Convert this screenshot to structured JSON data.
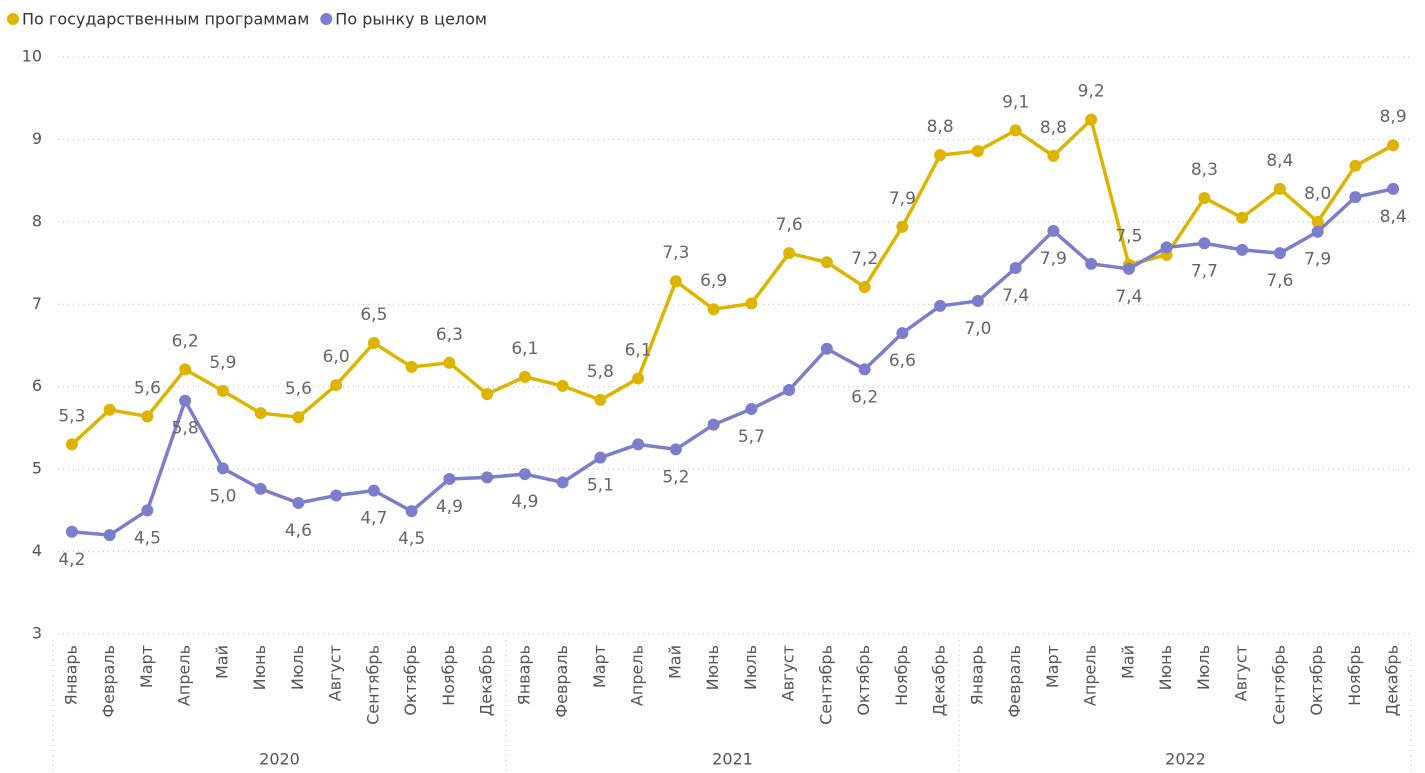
{
  "chart_data": {
    "type": "line",
    "groups": [
      {
        "label": "2020",
        "categories": [
          "Январь",
          "Февраль",
          "Март",
          "Апрель",
          "Май",
          "Июнь",
          "Июль",
          "Август",
          "Сентябрь",
          "Октябрь",
          "Ноябрь",
          "Декабрь"
        ]
      },
      {
        "label": "2021",
        "categories": [
          "Январь",
          "Февраль",
          "Март",
          "Апрель",
          "Май",
          "Июнь",
          "Июль",
          "Август",
          "Сентябрь",
          "Октябрь",
          "Ноябрь",
          "Декабрь"
        ]
      },
      {
        "label": "2022",
        "categories": [
          "Январь",
          "Февраль",
          "Март",
          "Апрель",
          "Май",
          "Июнь",
          "Июль",
          "Август",
          "Сентябрь",
          "Октябрь",
          "Ноябрь",
          "Декабрь"
        ]
      }
    ],
    "series": [
      {
        "name": "По государственным программам",
        "color": "#DDB500",
        "values": [
          5.3,
          5.72,
          5.64,
          6.21,
          5.95,
          5.68,
          5.63,
          6.02,
          6.53,
          6.24,
          6.29,
          5.91,
          6.12,
          6.01,
          5.84,
          6.1,
          7.28,
          6.94,
          7.01,
          7.62,
          7.51,
          7.21,
          7.94,
          8.81,
          8.86,
          9.11,
          8.8,
          9.24,
          7.48,
          7.6,
          8.29,
          8.05,
          8.4,
          8.0,
          8.68,
          8.93
        ],
        "value_labels": [
          "5,3",
          null,
          "5,6",
          "6,2",
          "5,9",
          null,
          "5,6",
          "6,0",
          "6,5",
          null,
          "6,3",
          null,
          "6,1",
          null,
          "5,8",
          "6,1",
          "7,3",
          "6,9",
          null,
          "7,6",
          null,
          "7,2",
          "7,9",
          "8,8",
          null,
          "9,1",
          "8,8",
          "9,2",
          "7,5",
          null,
          "8,3",
          null,
          "8,4",
          "8,0",
          null,
          "8,9"
        ]
      },
      {
        "name": "По рынку в целом",
        "color": "#7B7FCB",
        "values": [
          4.24,
          4.2,
          4.5,
          5.83,
          5.01,
          4.76,
          4.59,
          4.68,
          4.74,
          4.49,
          4.88,
          4.9,
          4.94,
          4.84,
          5.14,
          5.3,
          5.24,
          5.54,
          5.73,
          5.96,
          6.46,
          6.21,
          6.65,
          6.98,
          7.04,
          7.44,
          7.89,
          7.49,
          7.43,
          7.69,
          7.74,
          7.66,
          7.62,
          7.88,
          8.3,
          8.4
        ],
        "value_labels": [
          "4,2",
          null,
          "4,5",
          "5,8",
          "5,0",
          null,
          "4,6",
          null,
          "4,7",
          "4,5",
          "4,9",
          null,
          "4,9",
          null,
          "5,1",
          null,
          "5,2",
          null,
          "5,7",
          null,
          null,
          "6,2",
          "6,6",
          null,
          "7,0",
          "7,4",
          "7,9",
          null,
          "7,4",
          null,
          "7,7",
          null,
          "7,6",
          "7,9",
          null,
          "8,4"
        ]
      }
    ],
    "ylim": [
      3,
      10
    ],
    "yticks": [
      3,
      4,
      5,
      6,
      7,
      8,
      9,
      10
    ],
    "grid": true,
    "legend": "top-left"
  }
}
